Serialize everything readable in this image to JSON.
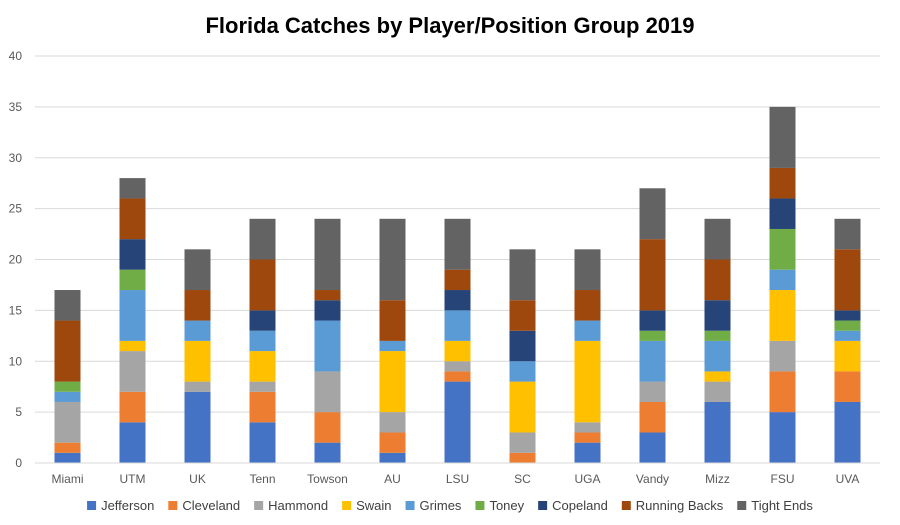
{
  "chart_data": {
    "type": "bar",
    "stacked": true,
    "title": "Florida Catches by Player/Position Group 2019",
    "xlabel": "",
    "ylabel": "",
    "ylim": [
      0,
      40
    ],
    "yticks": [
      0,
      5,
      10,
      15,
      20,
      25,
      30,
      35,
      40
    ],
    "grid": true,
    "legend_position": "bottom",
    "categories": [
      "Miami",
      "UTM",
      "UK",
      "Tenn",
      "Towson",
      "AU",
      "LSU",
      "SC",
      "UGA",
      "Vandy",
      "Mizz",
      "FSU",
      "UVA"
    ],
    "series": [
      {
        "name": "Jefferson",
        "color": "#4472C4",
        "values": [
          1,
          4,
          7,
          4,
          2,
          1,
          8,
          0,
          2,
          3,
          6,
          5,
          6
        ]
      },
      {
        "name": "Cleveland",
        "color": "#ED7D31",
        "values": [
          1,
          3,
          0,
          3,
          3,
          2,
          1,
          1,
          1,
          3,
          0,
          4,
          3
        ]
      },
      {
        "name": "Hammond",
        "color": "#A5A5A5",
        "values": [
          4,
          4,
          1,
          1,
          4,
          2,
          1,
          2,
          1,
          2,
          2,
          3,
          0
        ]
      },
      {
        "name": "Swain",
        "color": "#FFC000",
        "values": [
          0,
          1,
          4,
          3,
          0,
          6,
          2,
          5,
          8,
          0,
          1,
          5,
          3
        ]
      },
      {
        "name": "Grimes",
        "color": "#5B9BD5",
        "values": [
          1,
          5,
          2,
          2,
          5,
          1,
          3,
          2,
          2,
          4,
          3,
          2,
          1
        ]
      },
      {
        "name": "Toney",
        "color": "#70AD47",
        "values": [
          1,
          2,
          0,
          0,
          0,
          0,
          0,
          0,
          0,
          1,
          1,
          4,
          1
        ]
      },
      {
        "name": "Copeland",
        "color": "#264478",
        "values": [
          0,
          3,
          0,
          2,
          2,
          0,
          2,
          3,
          0,
          2,
          3,
          3,
          1
        ]
      },
      {
        "name": "Running Backs",
        "color": "#9E480E",
        "values": [
          6,
          4,
          3,
          5,
          1,
          4,
          2,
          3,
          3,
          7,
          4,
          3,
          6
        ]
      },
      {
        "name": "Tight Ends",
        "color": "#636363",
        "values": [
          3,
          2,
          4,
          4,
          7,
          8,
          5,
          5,
          4,
          5,
          4,
          6,
          3
        ]
      }
    ]
  }
}
